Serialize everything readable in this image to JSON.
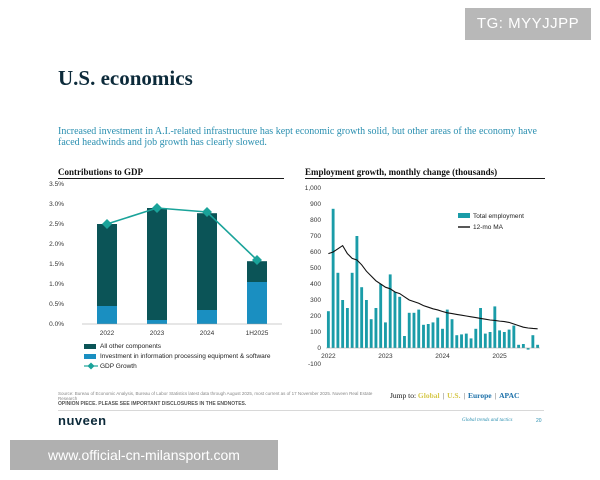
{
  "watermark_top": "TG: MYYJJPP",
  "watermark_bottom": "www.official-cn-milansport.com",
  "page_title": "U.S. economics",
  "subtitle": "Increased investment in A.I.-related infrastructure has kept economic growth solid, but other areas of the economy have faced headwinds and job growth has clearly slowed.",
  "chart_data": [
    {
      "type": "bar",
      "title": "Contributions to GDP",
      "categories": [
        "2022",
        "2023",
        "2024",
        "1H2025"
      ],
      "ylim": [
        0,
        3.5
      ],
      "yticks": [
        "3.5%",
        "3.0%",
        "2.5%",
        "2.0%",
        "1.5%",
        "1.0%",
        "0.5%",
        "0.0%"
      ],
      "series": [
        {
          "name": "All other components",
          "values": [
            2.05,
            2.8,
            2.42,
            0.52
          ],
          "color": "#0b5457"
        },
        {
          "name": "Investment in information processing equipment & software",
          "values": [
            0.45,
            0.1,
            0.35,
            1.05
          ],
          "color": "#1a8fc1"
        },
        {
          "name": "GDP Growth",
          "values": [
            2.5,
            2.9,
            2.8,
            1.6
          ],
          "color": "#1aa39a",
          "kind": "line"
        }
      ]
    },
    {
      "type": "bar",
      "title": "Employment growth, monthly change (thousands)",
      "ylim": [
        -100,
        1000
      ],
      "yticks": [
        "1,000",
        "900",
        "800",
        "700",
        "600",
        "500",
        "400",
        "300",
        "200",
        "100",
        "0",
        "-100"
      ],
      "xticks": [
        "2022",
        "2023",
        "2024",
        "2025"
      ],
      "series": [
        {
          "name": "Total employment",
          "color": "#1a9ca8",
          "values": [
            230,
            870,
            470,
            300,
            250,
            470,
            700,
            380,
            300,
            180,
            250,
            400,
            160,
            460,
            350,
            320,
            75,
            220,
            220,
            240,
            145,
            150,
            160,
            190,
            120,
            240,
            180,
            80,
            85,
            90,
            60,
            120,
            250,
            90,
            100,
            260,
            110,
            100,
            115,
            140,
            20,
            25,
            -10,
            80,
            20
          ]
        },
        {
          "name": "12-mo MA",
          "color": "#111111",
          "kind": "line",
          "values": [
            590,
            600,
            620,
            640,
            590,
            560,
            550,
            520,
            480,
            450,
            420,
            400,
            380,
            370,
            350,
            340,
            320,
            300,
            290,
            280,
            265,
            255,
            245,
            238,
            228,
            220,
            215,
            210,
            205,
            200,
            195,
            190,
            185,
            180,
            175,
            172,
            168,
            165,
            160,
            150,
            140,
            130,
            125,
            122,
            120
          ]
        }
      ]
    }
  ],
  "jump_to": {
    "label": "Jump to:",
    "links": [
      {
        "text": "Global",
        "color": "#d6c84a"
      },
      {
        "text": "U.S.",
        "color": "#d6c84a"
      },
      {
        "text": "Europe",
        "color": "#1a6fa8"
      },
      {
        "text": "APAC",
        "color": "#1a6fa8"
      }
    ]
  },
  "source_text": "Source: Bureau of Economic Analysis, Bureau of Labor Statistics latest data through August 2025, most current as of 17 November 2025. Nuveen Real Estate Research",
  "opinion_text": "OPINION PIECE. PLEASE SEE IMPORTANT DISCLOSURES IN THE ENDNOTES.",
  "footer": {
    "brand": "nuveen",
    "section": "Global trends and tactics",
    "page": "20"
  }
}
